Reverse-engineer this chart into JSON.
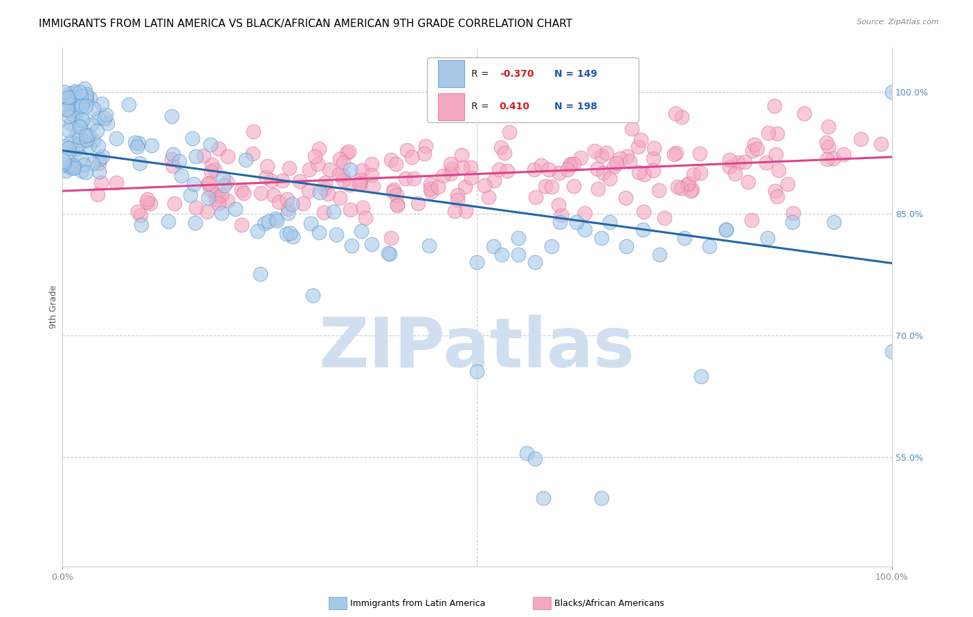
{
  "title": "IMMIGRANTS FROM LATIN AMERICA VS BLACK/AFRICAN AMERICAN 9TH GRADE CORRELATION CHART",
  "source": "Source: ZipAtlas.com",
  "ylabel": "9th Grade",
  "legend_label_blue": "Immigrants from Latin America",
  "legend_label_pink": "Blacks/African Americans",
  "blue_color": "#a8c8e8",
  "pink_color": "#f4a8c0",
  "blue_edge_color": "#5599cc",
  "pink_edge_color": "#e070a0",
  "blue_line_color": "#2266aa",
  "pink_line_color": "#dd4488",
  "background_color": "#ffffff",
  "title_fontsize": 11,
  "axis_label_fontsize": 9,
  "tick_fontsize": 9,
  "blue_trend_x0": 0.0,
  "blue_trend_x1": 1.0,
  "blue_trend_y0": 0.928,
  "blue_trend_y1": 0.789,
  "pink_trend_x0": 0.0,
  "pink_trend_x1": 1.0,
  "pink_trend_y0": 0.878,
  "pink_trend_y1": 0.92,
  "xlim_min": 0.0,
  "xlim_max": 1.0,
  "ylim_min": 0.415,
  "ylim_max": 1.055,
  "ytick_vals": [
    0.55,
    0.7,
    0.85,
    1.0
  ],
  "ytick_labels": [
    "55.0%",
    "70.0%",
    "85.0%",
    "100.0%"
  ],
  "watermark_text": "ZIPatlas",
  "watermark_color": "#d0dff0",
  "watermark_fontsize": 72,
  "legend_r_blue_label": "R = ",
  "legend_r_blue_val": "-0.370",
  "legend_n_blue": "N = 149",
  "legend_r_pink_label": "R =  ",
  "legend_r_pink_val": "0.410",
  "legend_n_pink": "N = 198"
}
